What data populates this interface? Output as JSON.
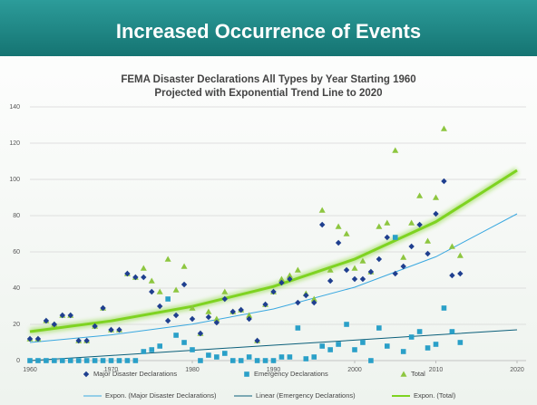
{
  "slide_title": "Increased Occurrence of Events",
  "chart_data": {
    "type": "scatter",
    "title": "FEMA Disaster Declarations All Types by Year Starting 1960",
    "subtitle": "Projected with Exponential Trend Line to 2020",
    "x": [
      1960,
      1961,
      1962,
      1963,
      1964,
      1965,
      1966,
      1967,
      1968,
      1969,
      1970,
      1971,
      1972,
      1973,
      1974,
      1975,
      1976,
      1977,
      1978,
      1979,
      1980,
      1981,
      1982,
      1983,
      1984,
      1985,
      1986,
      1987,
      1988,
      1989,
      1990,
      1991,
      1992,
      1993,
      1994,
      1995,
      1996,
      1997,
      1998,
      1999,
      2000,
      2001,
      2002,
      2003,
      2004,
      2005,
      2006,
      2007,
      2008,
      2009,
      2010,
      2011,
      2012,
      2013
    ],
    "series": [
      {
        "name": "Major Disaster Declarations",
        "color": "#1f3f8f",
        "marker": "diamond",
        "values": [
          12,
          12,
          22,
          20,
          25,
          25,
          11,
          11,
          19,
          29,
          17,
          17,
          48,
          46,
          46,
          38,
          30,
          22,
          25,
          42,
          23,
          15,
          24,
          21,
          34,
          27,
          28,
          23,
          11,
          31,
          38,
          43,
          45,
          32,
          36,
          32,
          75,
          44,
          65,
          50,
          45,
          45,
          49,
          56,
          68,
          48,
          52,
          63,
          75,
          59,
          81,
          99,
          47,
          48
        ]
      },
      {
        "name": "Emergency Declarations",
        "color": "#2aa0c8",
        "marker": "square",
        "values": [
          0,
          0,
          0,
          0,
          0,
          0,
          0,
          0,
          0,
          0,
          0,
          0,
          0,
          0,
          5,
          6,
          8,
          34,
          14,
          10,
          6,
          0,
          3,
          2,
          4,
          0,
          0,
          2,
          0,
          0,
          0,
          2,
          2,
          18,
          1,
          2,
          8,
          6,
          9,
          20,
          6,
          10,
          0,
          18,
          8,
          68,
          5,
          13,
          16,
          7,
          9,
          29,
          16,
          10
        ]
      },
      {
        "name": "Total",
        "color": "#8dc63f",
        "marker": "triangle",
        "values": [
          12,
          12,
          22,
          20,
          25,
          25,
          11,
          11,
          19,
          29,
          17,
          17,
          48,
          46,
          51,
          44,
          38,
          56,
          39,
          52,
          29,
          15,
          27,
          23,
          38,
          27,
          28,
          25,
          11,
          31,
          38,
          45,
          47,
          50,
          37,
          34,
          83,
          50,
          74,
          70,
          51,
          55,
          49,
          74,
          76,
          116,
          57,
          76,
          91,
          66,
          90,
          128,
          63,
          58
        ]
      }
    ],
    "trends": [
      {
        "name": "Expon. (Major Disaster Declarations)",
        "color": "#3aa8e0",
        "width": 1,
        "x": [
          1960,
          1970,
          1980,
          1990,
          2000,
          2010,
          2020
        ],
        "values": [
          10,
          14.2,
          20.1,
          28.5,
          40.5,
          57.3,
          81
        ]
      },
      {
        "name": "Linear (Emergency Declarations)",
        "color": "#0b5f7a",
        "width": 1,
        "x": [
          1960,
          1970,
          1980,
          1990,
          2000,
          2010,
          2020
        ],
        "values": [
          0,
          2.8,
          5.7,
          8.5,
          11.3,
          14.2,
          17
        ]
      },
      {
        "name": "Expon. (Total)",
        "color": "#7ed321",
        "width": 3,
        "x": [
          1960,
          1970,
          1980,
          1990,
          2000,
          2010,
          2020
        ],
        "values": [
          16,
          21.9,
          29.9,
          40.9,
          56,
          76.6,
          105
        ]
      }
    ],
    "xlim": [
      1960,
      2020
    ],
    "xticks": [
      1960,
      1970,
      1980,
      1990,
      2000,
      2010,
      2020
    ],
    "ylim": [
      0,
      140
    ],
    "yticks": [
      0,
      20,
      40,
      60,
      80,
      100,
      120,
      140
    ],
    "grid": true
  }
}
